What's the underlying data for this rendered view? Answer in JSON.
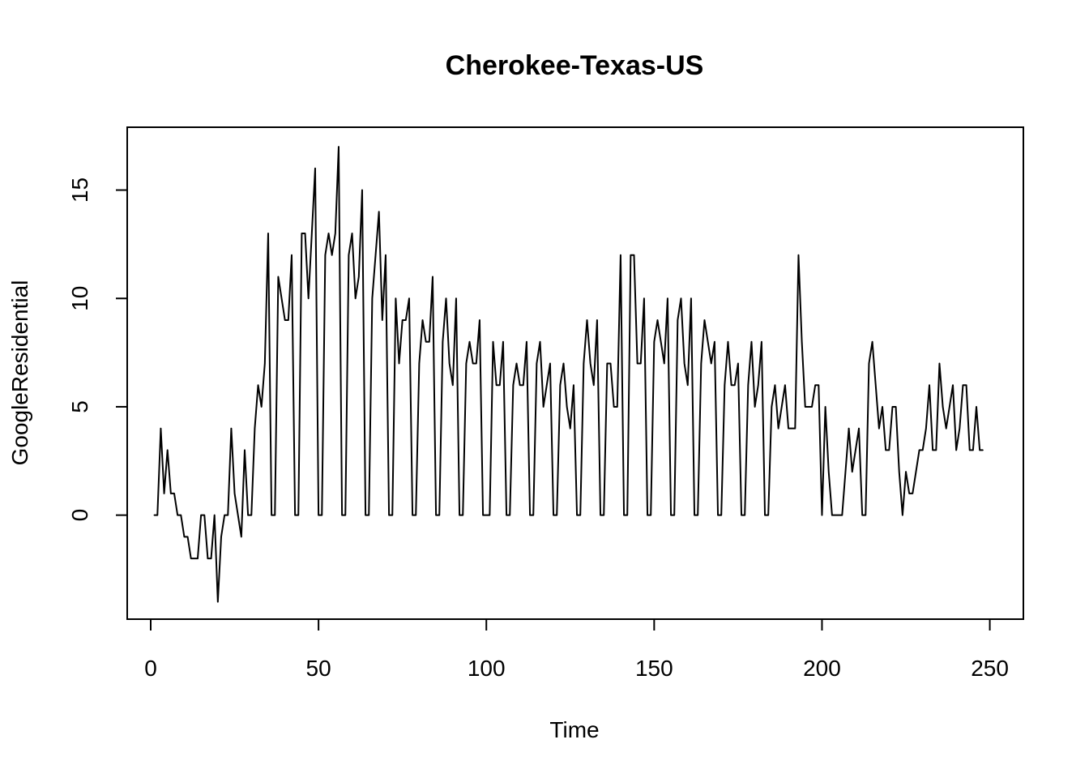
{
  "chart_data": {
    "type": "line",
    "title": "Cherokee-Texas-US",
    "xlabel": "Time",
    "ylabel": "GoogleResidential",
    "xlim": [
      -7,
      260
    ],
    "ylim": [
      -4.8,
      17.9
    ],
    "x_ticks": [
      0,
      50,
      100,
      150,
      200,
      250
    ],
    "y_ticks": [
      0,
      5,
      10,
      15
    ],
    "grid": false,
    "legend": "none",
    "line_color": "#000000",
    "x_start": 1,
    "series": [
      {
        "values": [
          0,
          0,
          4,
          1,
          3,
          1,
          1,
          0,
          0,
          -1,
          -1,
          -2,
          -2,
          -2,
          0,
          0,
          -2,
          -2,
          0,
          -4,
          -1,
          0,
          0,
          4,
          1,
          0,
          -1,
          3,
          0,
          0,
          4,
          6,
          5,
          7,
          13,
          0,
          0,
          11,
          10,
          9,
          9,
          12,
          0,
          0,
          13,
          13,
          10,
          13,
          16,
          0,
          0,
          12,
          13,
          12,
          13,
          17,
          0,
          0,
          12,
          13,
          10,
          11,
          15,
          0,
          0,
          10,
          12,
          14,
          9,
          12,
          0,
          0,
          10,
          7,
          9,
          9,
          10,
          0,
          0,
          7,
          9,
          8,
          8,
          11,
          0,
          0,
          8,
          10,
          7,
          6,
          10,
          0,
          0,
          7,
          8,
          7,
          7,
          9,
          0,
          0,
          0,
          8,
          6,
          6,
          8,
          0,
          0,
          6,
          7,
          6,
          6,
          8,
          0,
          0,
          7,
          8,
          5,
          6,
          7,
          0,
          0,
          6,
          7,
          5,
          4,
          6,
          0,
          0,
          7,
          9,
          7,
          6,
          9,
          0,
          0,
          7,
          7,
          5,
          5,
          12,
          0,
          0,
          12,
          12,
          7,
          7,
          10,
          0,
          0,
          8,
          9,
          8,
          7,
          10,
          0,
          0,
          9,
          10,
          7,
          6,
          10,
          0,
          0,
          7,
          9,
          8,
          7,
          8,
          0,
          0,
          6,
          8,
          6,
          6,
          7,
          0,
          0,
          6,
          8,
          5,
          6,
          8,
          0,
          0,
          5,
          6,
          4,
          5,
          6,
          4,
          4,
          4,
          12,
          8,
          5,
          5,
          5,
          6,
          6,
          0,
          5,
          2,
          0,
          0,
          0,
          0,
          2,
          4,
          2,
          3,
          4,
          0,
          0,
          7,
          8,
          6,
          4,
          5,
          3,
          3,
          5,
          5,
          2,
          0,
          2,
          1,
          1,
          2,
          3,
          3,
          4,
          6,
          3,
          3,
          7,
          5,
          4,
          5,
          6,
          3,
          4,
          6,
          6,
          3,
          3,
          5,
          3,
          3
        ]
      }
    ]
  }
}
